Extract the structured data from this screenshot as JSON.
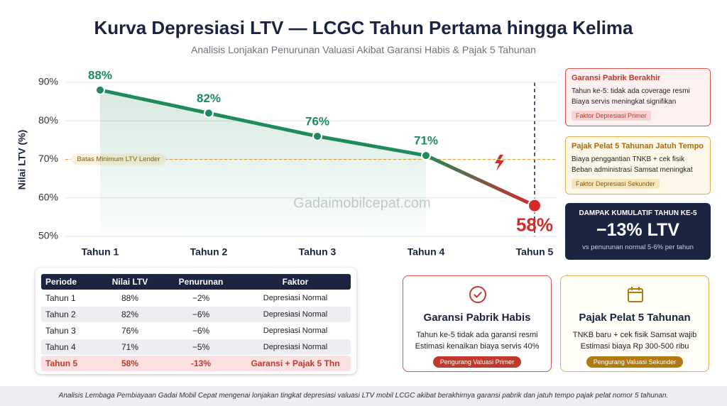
{
  "chart_data": {
    "type": "line",
    "title": "Kurva Depresiasi LTV — LCGC Tahun Pertama hingga Kelima",
    "subtitle": "Analisis Lonjakan Penurunan Valuasi Akibat Garansi Habis & Pajak 5 Tahunan",
    "y_label": "Nilai LTV (%)",
    "categories": [
      "Tahun 1",
      "Tahun 2",
      "Tahun 3",
      "Tahun 4",
      "Tahun 5"
    ],
    "values": [
      88,
      82,
      76,
      71,
      58
    ],
    "value_labels": [
      "88%",
      "82%",
      "76%",
      "71%",
      "58%"
    ],
    "color": "#1f8a5b",
    "highlight_color": "#d42a2a",
    "ylim": [
      50,
      90
    ],
    "yticks": [
      {
        "value": 50,
        "label": "50%"
      },
      {
        "value": 60,
        "label": "60%"
      },
      {
        "value": 70,
        "label": "70%"
      },
      {
        "value": 80,
        "label": "80%"
      },
      {
        "value": 90,
        "label": "90%"
      }
    ],
    "grid": true,
    "reference_line": {
      "value": 70,
      "label": "Batas Minimum LTV Lender",
      "color": "#e8a23a"
    },
    "watermark": "Gadaimobilcepat.com"
  },
  "side_cards": [
    {
      "title": "Garansi Pabrik Berakhir",
      "lines": [
        "Tahun ke-5: tidak ada coverage resmi",
        "Biaya servis meningkat signifikan"
      ],
      "tag": "Faktor Depresiasi Primer"
    },
    {
      "title": "Pajak Pelat 5 Tahunan Jatuh Tempo",
      "lines": [
        "Biaya penggantian TNKB + cek fisik",
        "Beban administrasi Samsat meningkat"
      ],
      "tag": "Faktor Depresiasi Sekunder"
    }
  ],
  "impact": {
    "label": "DAMPAK KUMULATIF TAHUN KE-5",
    "value": "−13% LTV",
    "note": "vs penurunan normal 5-6% per tahun"
  },
  "table": {
    "headers": [
      "Periode",
      "Nilai LTV",
      "Penurunan",
      "Faktor"
    ],
    "rows": [
      [
        "Tahun 1",
        "88%",
        "−2%",
        "Depresiasi Normal"
      ],
      [
        "Tahun 2",
        "82%",
        "−6%",
        "Depresiasi Normal"
      ],
      [
        "Tahun 3",
        "76%",
        "−6%",
        "Depresiasi Normal"
      ],
      [
        "Tahun 4",
        "71%",
        "−5%",
        "Depresiasi Normal"
      ],
      [
        "Tahun 5",
        "58%",
        "-13%",
        "Garansi + Pajak 5 Thn"
      ]
    ]
  },
  "info_cards": [
    {
      "title": "Garansi Pabrik Habis",
      "lines": [
        "Tahun ke-5 tidak ada garansi resmi",
        "Estimasi kenaikan biaya servis 40%"
      ],
      "tag": "Pengurang Valuasi Primer"
    },
    {
      "title": "Pajak Pelat 5 Tahunan",
      "lines": [
        "TNKB baru + cek fisik Samsat wajib",
        "Estimasi biaya Rp 300-500 ribu"
      ],
      "tag": "Pengurang Valuasi Sekunder"
    }
  ],
  "footer": "Analisis Lembaga Pembiayaan Gadai Mobil Cepat mengenai lonjakan tingkat depresiasi valuasi LTV mobil LCGC akibat berakhirnya garansi pabrik dan jatuh tempo pajak pelat nomor 5 tahunan."
}
